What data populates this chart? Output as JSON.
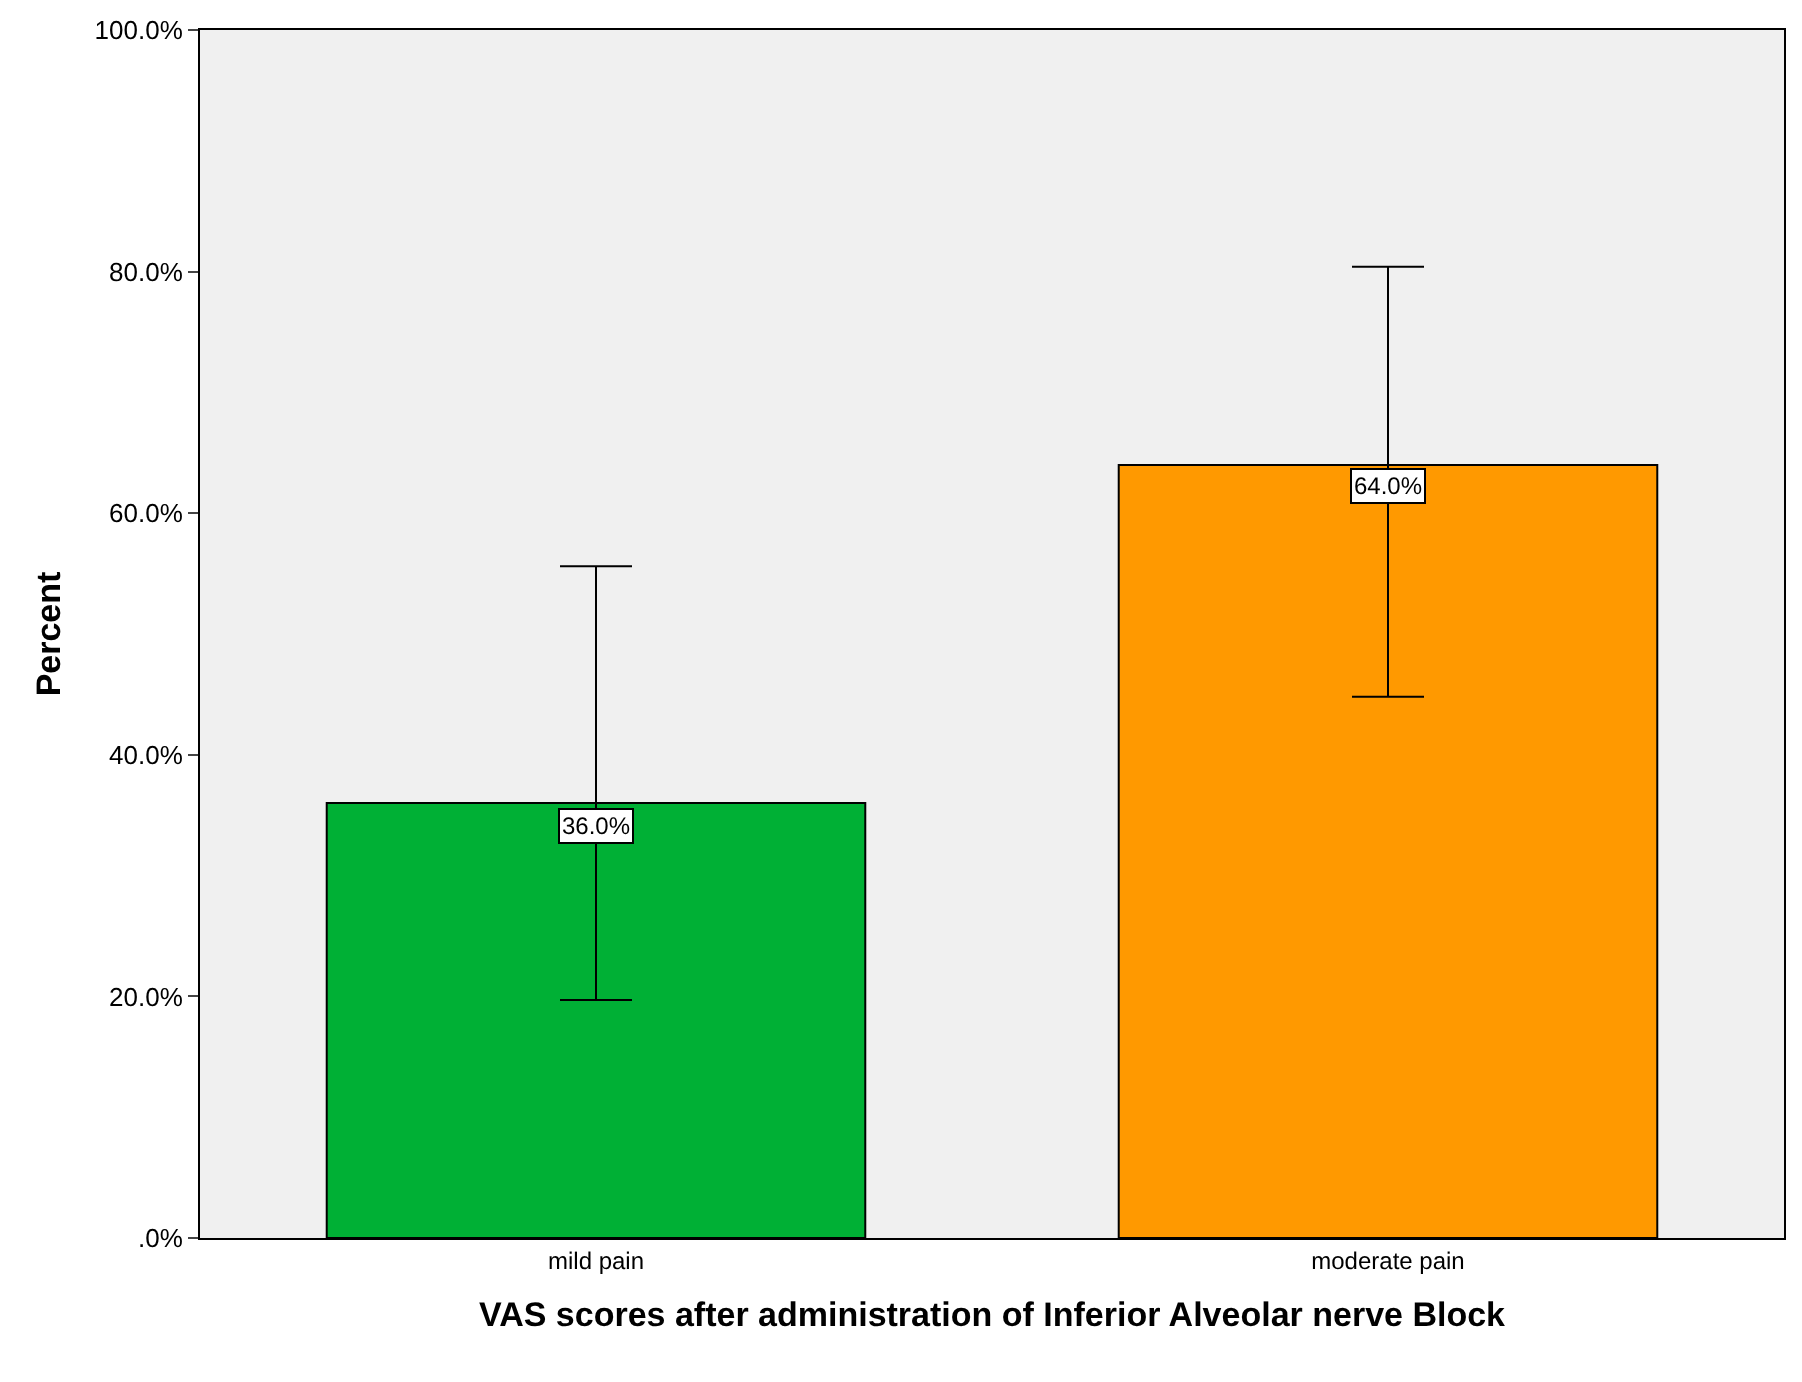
{
  "chart_data": {
    "type": "bar",
    "xlabel": "VAS scores after administration of Inferior Alveolar nerve Block",
    "ylabel": "Percent",
    "categories": [
      "mild pain",
      "moderate pain"
    ],
    "values": [
      36,
      64
    ],
    "colors": [
      "#00b035",
      "#ff9900"
    ],
    "value_labels": [
      "36.0%",
      "64.0%"
    ],
    "errors": [
      [
        19.7,
        55.6
      ],
      [
        44.8,
        80.4
      ]
    ],
    "ylim": [
      0,
      100
    ],
    "yticks": [
      {
        "value": 0,
        "label": ".0%"
      },
      {
        "value": 20,
        "label": "20.0%"
      },
      {
        "value": 40,
        "label": "40.0%"
      },
      {
        "value": 60,
        "label": "60.0%"
      },
      {
        "value": 80,
        "label": "80.0%"
      },
      {
        "value": 100,
        "label": "100.0%"
      }
    ],
    "grid": false
  }
}
